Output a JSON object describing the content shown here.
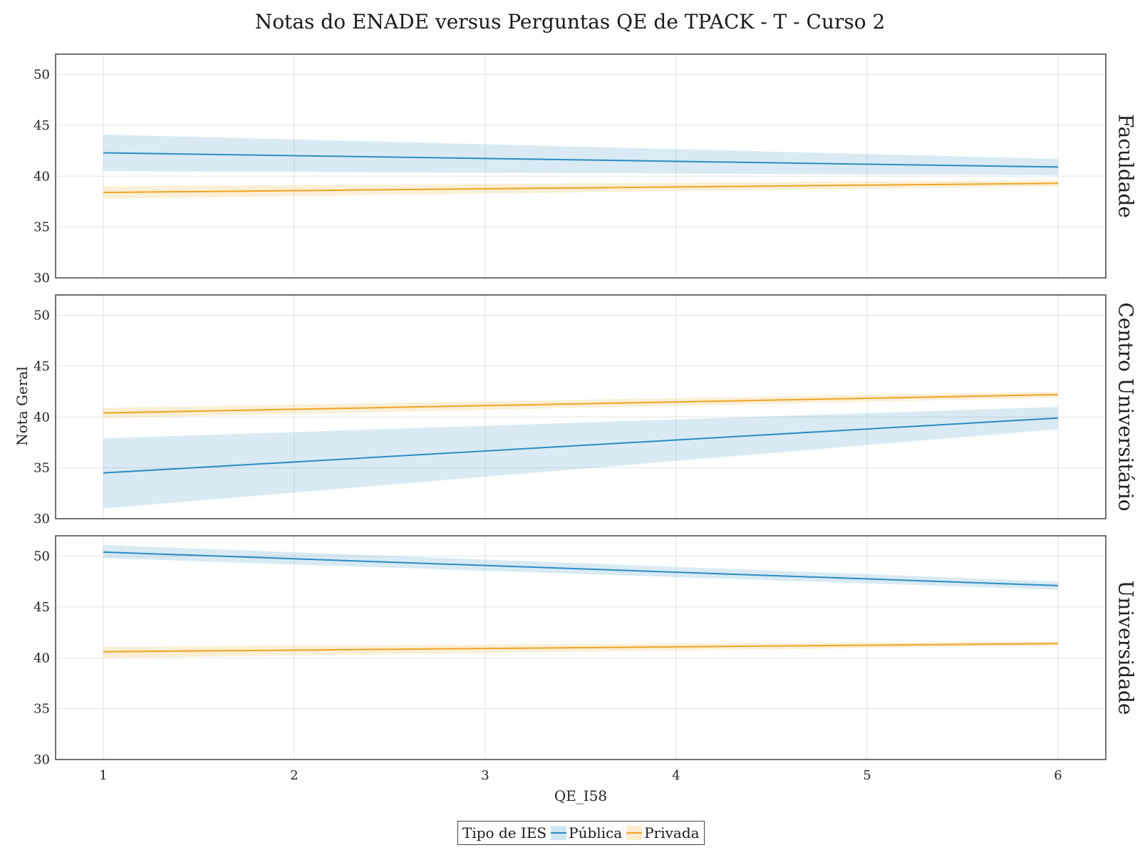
{
  "chart_data": {
    "type": "line",
    "title": "Notas do ENADE versus Perguntas QE de TPACK - T - Curso 2",
    "xlabel": "QE_I58",
    "ylabel": "Nota Geral",
    "xlim": [
      0.75,
      6.25
    ],
    "ylim": [
      30,
      52
    ],
    "x_ticks": [
      1,
      2,
      3,
      4,
      5,
      6
    ],
    "y_ticks": [
      30,
      35,
      40,
      45,
      50
    ],
    "grid": true,
    "legend": {
      "title": "Tipo de IES",
      "position": "bottom",
      "entries": [
        {
          "name": "Pública",
          "color": "#2b8cc4"
        },
        {
          "name": "Privada",
          "color": "#f0a424"
        }
      ]
    },
    "facets": [
      {
        "label": "Faculdade",
        "series": [
          {
            "name": "Pública",
            "color": "#2b8cc4",
            "x": [
              1,
              6
            ],
            "y": [
              42.3,
              40.9
            ],
            "ci_lower": [
              40.5,
              40.1
            ],
            "ci_upper": [
              44.1,
              41.7
            ]
          },
          {
            "name": "Privada",
            "color": "#f0a424",
            "x": [
              1,
              6
            ],
            "y": [
              38.4,
              39.3
            ],
            "ci_lower": [
              37.8,
              39.0
            ],
            "ci_upper": [
              39.0,
              39.6
            ]
          }
        ]
      },
      {
        "label": "Centro Universitário",
        "series": [
          {
            "name": "Pública",
            "color": "#2b8cc4",
            "x": [
              1,
              6
            ],
            "y": [
              34.5,
              39.9
            ],
            "ci_lower": [
              31.0,
              38.8
            ],
            "ci_upper": [
              37.9,
              41.0
            ]
          },
          {
            "name": "Privada",
            "color": "#f0a424",
            "x": [
              1,
              6
            ],
            "y": [
              40.4,
              42.2
            ],
            "ci_lower": [
              39.9,
              41.9
            ],
            "ci_upper": [
              40.9,
              42.5
            ]
          }
        ]
      },
      {
        "label": "Universidade",
        "series": [
          {
            "name": "Pública",
            "color": "#2b8cc4",
            "x": [
              1,
              6
            ],
            "y": [
              50.4,
              47.1
            ],
            "ci_lower": [
              49.8,
              46.7
            ],
            "ci_upper": [
              51.1,
              47.5
            ]
          },
          {
            "name": "Privada",
            "color": "#f0a424",
            "x": [
              1,
              6
            ],
            "y": [
              40.6,
              41.4
            ],
            "ci_lower": [
              40.0,
              41.2
            ],
            "ci_upper": [
              41.1,
              41.6
            ]
          }
        ]
      }
    ]
  }
}
